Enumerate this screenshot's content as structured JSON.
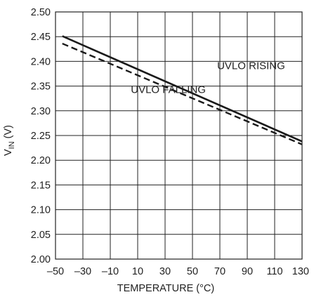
{
  "chart_data": {
    "type": "line",
    "title": "",
    "xlabel": "TEMPERATURE (°C)",
    "ylabel_main": "V",
    "ylabel_sub": "IN",
    "ylabel_unit": " (V)",
    "xlim": [
      -50,
      130
    ],
    "ylim": [
      2.0,
      2.5
    ],
    "x_ticks": [
      -50,
      -30,
      -10,
      10,
      30,
      50,
      70,
      90,
      110,
      130
    ],
    "x_tick_labels": [
      "–50",
      "–30",
      "–10",
      "10",
      "30",
      "50",
      "70",
      "90",
      "110",
      "130"
    ],
    "y_ticks": [
      2.0,
      2.05,
      2.1,
      2.15,
      2.2,
      2.25,
      2.3,
      2.35,
      2.4,
      2.45,
      2.5
    ],
    "y_tick_labels": [
      "2.00",
      "2.05",
      "2.10",
      "2.15",
      "2.20",
      "2.25",
      "2.30",
      "2.35",
      "2.40",
      "2.45",
      "2.50"
    ],
    "grid": true,
    "series": [
      {
        "name": "UVLO RISING",
        "style": "solid",
        "color": "#1a1a1a",
        "x": [
          -45,
          130
        ],
        "y": [
          2.451,
          2.238
        ]
      },
      {
        "name": "UVLO FALLING",
        "style": "dashed",
        "color": "#1a1a1a",
        "x": [
          -45,
          130
        ],
        "y": [
          2.436,
          2.232
        ]
      }
    ],
    "annotations": [
      {
        "text": "UVLO RISING",
        "series": "UVLO RISING",
        "x": 68,
        "y": 2.384
      },
      {
        "text": "UVLO FALLING",
        "series": "UVLO FALLING",
        "x": 5,
        "y": 2.336
      }
    ]
  }
}
